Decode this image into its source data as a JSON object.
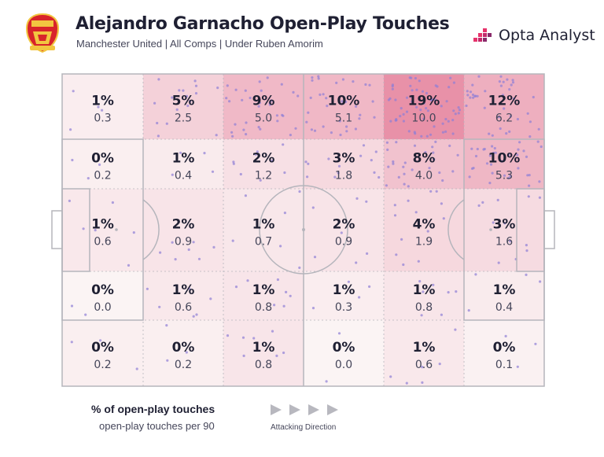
{
  "header": {
    "title": "Alejandro Garnacho Open-Play Touches",
    "subtitle": "Manchester United | All Comps | Under Ruben Amorim",
    "brand": "Opta Analyst"
  },
  "legend": {
    "pct_label": "% of open-play touches",
    "per90_label": "open-play touches per 90",
    "direction_label": "Attacking Direction"
  },
  "colors": {
    "heat_max": "#e891a8",
    "heat_min": "#fbf4f4",
    "dots": "#8f7fd6",
    "text": "#1f2033",
    "pitch_lines": "#b5b5bc",
    "brand_accent": "#e6336b"
  },
  "chart_data": {
    "type": "heatmap",
    "columns": 6,
    "rows": 5,
    "cells": [
      [
        {
          "pct": "1%",
          "per90": "0.3"
        },
        {
          "pct": "5%",
          "per90": "2.5"
        },
        {
          "pct": "9%",
          "per90": "5.0"
        },
        {
          "pct": "10%",
          "per90": "5.1"
        },
        {
          "pct": "19%",
          "per90": "10.0"
        },
        {
          "pct": "12%",
          "per90": "6.2"
        }
      ],
      [
        {
          "pct": "0%",
          "per90": "0.2"
        },
        {
          "pct": "1%",
          "per90": "0.4"
        },
        {
          "pct": "2%",
          "per90": "1.2"
        },
        {
          "pct": "3%",
          "per90": "1.8"
        },
        {
          "pct": "8%",
          "per90": "4.0"
        },
        {
          "pct": "10%",
          "per90": "5.3"
        }
      ],
      [
        {
          "pct": "1%",
          "per90": "0.6"
        },
        {
          "pct": "2%",
          "per90": "0.9"
        },
        {
          "pct": "1%",
          "per90": "0.7"
        },
        {
          "pct": "2%",
          "per90": "0.9"
        },
        {
          "pct": "4%",
          "per90": "1.9"
        },
        {
          "pct": "3%",
          "per90": "1.6"
        }
      ],
      [
        {
          "pct": "0%",
          "per90": "0.0"
        },
        {
          "pct": "1%",
          "per90": "0.6"
        },
        {
          "pct": "1%",
          "per90": "0.8"
        },
        {
          "pct": "1%",
          "per90": "0.3"
        },
        {
          "pct": "1%",
          "per90": "0.8"
        },
        {
          "pct": "1%",
          "per90": "0.4"
        }
      ],
      [
        {
          "pct": "0%",
          "per90": "0.2"
        },
        {
          "pct": "0%",
          "per90": "0.2"
        },
        {
          "pct": "1%",
          "per90": "0.8"
        },
        {
          "pct": "0%",
          "per90": "0.0"
        },
        {
          "pct": "1%",
          "per90": "0.6"
        },
        {
          "pct": "0%",
          "per90": "0.1"
        }
      ]
    ],
    "attacking_direction": "right",
    "grid": true
  }
}
